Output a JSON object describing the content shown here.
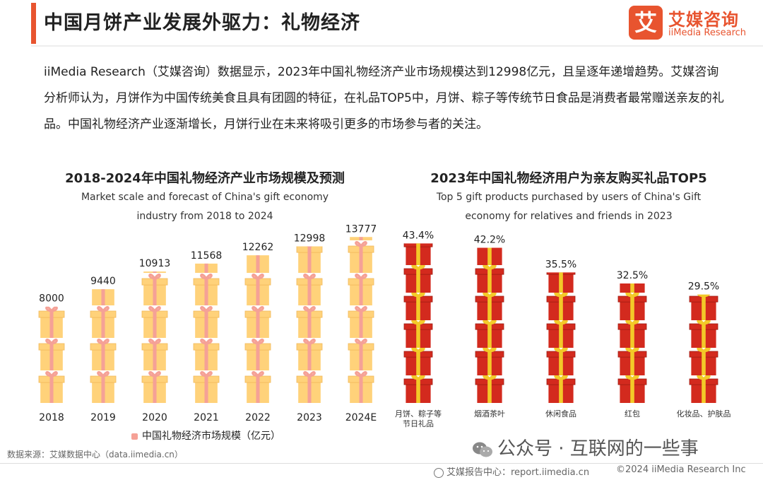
{
  "page": {
    "title": "中国月饼产业发展外驱力：礼物经济",
    "intro": "iiMedia Research（艾媒咨询）数据显示，2023年中国礼物经济产业市场规模达到12998亿元，且呈逐年递增趋势。艾媒咨询分析师认为，月饼作为中国传统美食且具有团圆的特征，在礼品TOP5中，月饼、粽子等传统节日食品是消费者最常赠送亲友的礼品。中国礼物经济产业逐渐增长，月饼行业在未来将吸引更多的市场参与者的关注。",
    "source": "数据来源：艾媒数据中心（data.iimedia.cn）",
    "footer": "艾媒报告中心：report.iimedia.cn",
    "copyright": "©2024  iiMedia Research Inc",
    "watermark": "公众号 · 互联网的一些事",
    "accent_color": "#e8542f"
  },
  "logo": {
    "mark": "艾",
    "cn": "艾媒咨询",
    "en": "iiMedia Research",
    "icon": "iimedia-logo-icon"
  },
  "chart_data": [
    {
      "type": "bar",
      "title": "2018-2024年中国礼物经济产业市场规模及预测",
      "subtitle": "Market scale and forecast of China's gift economy industry from 2018 to 2024",
      "categories": [
        "2018",
        "2019",
        "2020",
        "2021",
        "2022",
        "2023",
        "2024E"
      ],
      "series": [
        {
          "name": "中国礼物经济市场规模（亿元）",
          "values": [
            8000,
            9440,
            10913,
            11568,
            12262,
            12998,
            13777
          ]
        }
      ],
      "data_labels": [
        "8000",
        "9440",
        "10913",
        "11568",
        "12262",
        "12998",
        "13777"
      ],
      "ylim": [
        0,
        14000
      ],
      "mark": "gift-box-icon",
      "colors": {
        "box": "#ffd27a",
        "ribbon": "#f5a196"
      },
      "legend": "bottom"
    },
    {
      "type": "bar",
      "title": "2023年中国礼物经济用户为亲友购买礼品TOP5",
      "subtitle": "Top 5 gift products purchased by users of China's Gift economy for relatives and friends in 2023",
      "categories": [
        "月饼、粽子等节日礼品",
        "烟酒茶叶",
        "休闲食品",
        "红包",
        "化妆品、护肤品"
      ],
      "values": [
        43.4,
        42.2,
        35.5,
        32.5,
        29.5
      ],
      "data_labels": [
        "43.4%",
        "42.2%",
        "35.5%",
        "32.5%",
        "29.5%"
      ],
      "ylim": [
        0,
        45
      ],
      "mark": "gift-box-icon",
      "colors": {
        "box": "#d32a1e",
        "ribbon": "#f3c928"
      }
    }
  ]
}
